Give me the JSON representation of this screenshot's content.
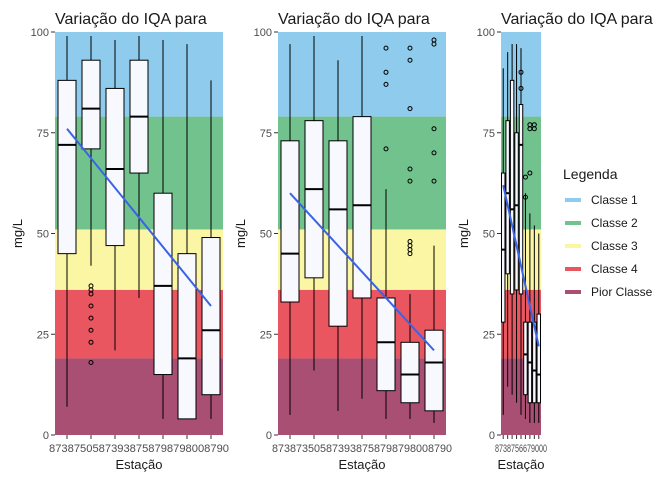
{
  "bands": [
    {
      "from": 79,
      "to": 100,
      "color": "#8ecbec",
      "class": "Classe 1"
    },
    {
      "from": 51,
      "to": 79,
      "color": "#72c28e",
      "class": "Classe 2"
    },
    {
      "from": 36,
      "to": 51,
      "color": "#fbf6a4",
      "class": "Classe 3"
    },
    {
      "from": 19,
      "to": 36,
      "color": "#ea5660",
      "class": "Classe 4"
    },
    {
      "from": 0,
      "to": 19,
      "color": "#a84f73",
      "class": "Pior Classe"
    }
  ],
  "legend": {
    "title": "Legenda",
    "items": [
      {
        "label": "Classe 1",
        "color": "#8ecbec"
      },
      {
        "label": "Classe 2",
        "color": "#72c28e"
      },
      {
        "label": "Classe 3",
        "color": "#fbf6a4"
      },
      {
        "label": "Classe 4",
        "color": "#ea5660"
      },
      {
        "label": "Pior Classe",
        "color": "#a84f73"
      }
    ]
  },
  "chart_data": [
    {
      "type": "box",
      "title": "Variação do IQA para",
      "xlabel": "Estação",
      "ylabel": "mg/L",
      "ylim": [
        0,
        100
      ],
      "yticks": [
        0,
        25,
        50,
        75,
        100
      ],
      "tick_labels_text": "87387505873938758798798008790",
      "trend": {
        "from": 76,
        "to": 32,
        "color": "#3a63e6"
      },
      "boxes": [
        {
          "min": 7,
          "q1": 45,
          "median": 72,
          "q3": 88,
          "max": 99,
          "outliers": []
        },
        {
          "min": 42,
          "q1": 71,
          "median": 81,
          "q3": 93,
          "max": 99,
          "outliers": [
            37,
            36,
            35,
            32,
            29,
            26,
            23,
            18
          ]
        },
        {
          "min": 21,
          "q1": 47,
          "median": 66,
          "q3": 86,
          "max": 98,
          "outliers": []
        },
        {
          "min": 34,
          "q1": 65,
          "median": 79,
          "q3": 93,
          "max": 99,
          "outliers": []
        },
        {
          "min": 4,
          "q1": 15,
          "median": 37,
          "q3": 60,
          "max": 98,
          "outliers": []
        },
        {
          "min": 4,
          "q1": 4,
          "median": 19,
          "q3": 45,
          "max": 97,
          "outliers": []
        },
        {
          "min": 4,
          "q1": 10,
          "median": 26,
          "q3": 49,
          "max": 88,
          "outliers": []
        }
      ]
    },
    {
      "type": "box",
      "title": "Variação do IQA para",
      "xlabel": "Estação",
      "ylabel": "mg/L",
      "ylim": [
        0,
        100
      ],
      "yticks": [
        0,
        25,
        50,
        75,
        100
      ],
      "tick_labels_text": "873873505873938758798798008790",
      "trend": {
        "from": 60,
        "to": 21,
        "color": "#3a63e6"
      },
      "boxes": [
        {
          "min": 5,
          "q1": 33,
          "median": 45,
          "q3": 73,
          "max": 97,
          "outliers": []
        },
        {
          "min": 16,
          "q1": 39,
          "median": 61,
          "q3": 78,
          "max": 99,
          "outliers": []
        },
        {
          "min": 6,
          "q1": 27,
          "median": 56,
          "q3": 73,
          "max": 93,
          "outliers": []
        },
        {
          "min": 9,
          "q1": 34,
          "median": 57,
          "q3": 79,
          "max": 99,
          "outliers": []
        },
        {
          "min": 4,
          "q1": 11,
          "median": 23,
          "q3": 34,
          "max": 61,
          "outliers": [
            96,
            90,
            87,
            71
          ]
        },
        {
          "min": 4,
          "q1": 8,
          "median": 15,
          "q3": 23,
          "max": 35,
          "outliers": [
            96,
            93,
            81,
            66,
            63,
            48,
            47,
            46,
            45
          ]
        },
        {
          "min": 3,
          "q1": 6,
          "median": 18,
          "q3": 26,
          "max": 47,
          "outliers": [
            98,
            97,
            76,
            70,
            63
          ]
        }
      ]
    },
    {
      "type": "box",
      "title": "Variação do IQA para",
      "xlabel": "Estação",
      "ylabel": "mg/L",
      "ylim": [
        0,
        100
      ],
      "yticks": [
        0,
        25,
        50,
        75,
        100
      ],
      "tick_labels_text": "8738756679000",
      "trend": {
        "from": 62,
        "to": 22,
        "color": "#3a63e6"
      },
      "boxes": [
        {
          "min": 5,
          "q1": 28,
          "median": 46,
          "q3": 65,
          "max": 91,
          "outliers": []
        },
        {
          "min": 12,
          "q1": 40,
          "median": 60,
          "q3": 78,
          "max": 95,
          "outliers": []
        },
        {
          "min": 10,
          "q1": 35,
          "median": 56,
          "q3": 88,
          "max": 97,
          "outliers": []
        },
        {
          "min": 8,
          "q1": 36,
          "median": 57,
          "q3": 75,
          "max": 97,
          "outliers": []
        },
        {
          "min": 5,
          "q1": 35,
          "median": 72,
          "q3": 82,
          "max": 96,
          "outliers": [
            90,
            86
          ]
        },
        {
          "min": 4,
          "q1": 10,
          "median": 20,
          "q3": 28,
          "max": 60,
          "outliers": [
            64,
            59
          ]
        },
        {
          "min": 3,
          "q1": 8,
          "median": 18,
          "q3": 28,
          "max": 55,
          "outliers": [
            77,
            76,
            65
          ]
        },
        {
          "min": 3,
          "q1": 8,
          "median": 16,
          "q3": 28,
          "max": 52,
          "outliers": [
            77,
            76
          ]
        },
        {
          "min": 3,
          "q1": 8,
          "median": 15,
          "q3": 30,
          "max": 50,
          "outliers": []
        }
      ]
    }
  ]
}
